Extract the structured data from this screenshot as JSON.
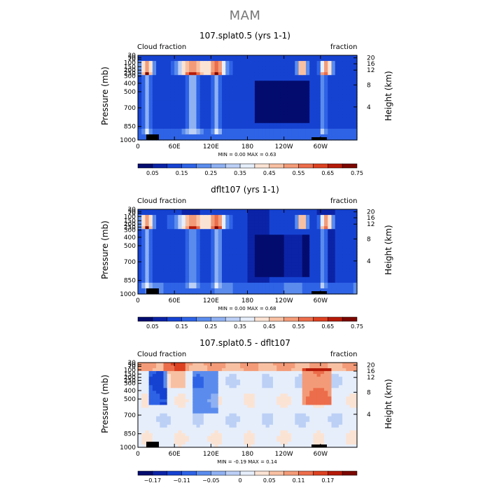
{
  "figure": {
    "title": "MAM"
  },
  "colors": {
    "cloud_scale": [
      "#030c6e",
      "#0b23a6",
      "#1642d1",
      "#2e63e6",
      "#5b8ced",
      "#8fb1f2",
      "#bcd0f6",
      "#e6eefb",
      "#fbe3d4",
      "#f8c0a2",
      "#f39b78",
      "#ec6d4b",
      "#dc4121",
      "#b51a08",
      "#7c0700"
    ],
    "diff_scale": [
      "#030c6e",
      "#0b23a6",
      "#1642d1",
      "#2e63e6",
      "#5b8ced",
      "#8fb1f2",
      "#bcd0f6",
      "#e6eefb",
      "#fbe3d4",
      "#f8c0a2",
      "#f39b78",
      "#ec6d4b",
      "#dc4121",
      "#b51a08",
      "#7c0700"
    ]
  },
  "chart_data": [
    {
      "type": "heatmap",
      "title": "107.splat0.5 (yrs 1-1)",
      "left_label": "Cloud fraction",
      "right_label": "fraction",
      "ylabel": "Pressure (mb)",
      "y2label": "Height (km)",
      "x_ticks": [
        "0",
        "60E",
        "120E",
        "180",
        "120W",
        "60W"
      ],
      "y_ticks": [
        "30",
        "50",
        "70",
        "100",
        "150",
        "200",
        "250",
        "300",
        "400",
        "500",
        "700",
        "850",
        "1000"
      ],
      "y2_ticks": [
        "20",
        "16",
        "12",
        "8",
        "4"
      ],
      "stats": {
        "min_label": "MIN =",
        "min": "0.00",
        "max_label": "MAX =",
        "max": "0.63"
      },
      "colorbar_labels": [
        "0.05",
        "0.15",
        "0.25",
        "0.35",
        "0.45",
        "0.55",
        "0.65",
        "0.75"
      ],
      "scale": "cloud_scale"
    },
    {
      "type": "heatmap",
      "title": "dflt107 (yrs 1-1)",
      "left_label": "Cloud fraction",
      "right_label": "fraction",
      "ylabel": "Pressure (mb)",
      "y2label": "Height (km)",
      "x_ticks": [
        "0",
        "60E",
        "120E",
        "180",
        "120W",
        "60W"
      ],
      "y_ticks": [
        "30",
        "50",
        "70",
        "100",
        "150",
        "200",
        "250",
        "300",
        "400",
        "500",
        "700",
        "850",
        "1000"
      ],
      "y2_ticks": [
        "20",
        "16",
        "12",
        "8",
        "4"
      ],
      "stats": {
        "min_label": "MIN =",
        "min": "0.00",
        "max_label": "MAX =",
        "max": "0.68"
      },
      "colorbar_labels": [
        "0.05",
        "0.15",
        "0.25",
        "0.35",
        "0.45",
        "0.55",
        "0.65",
        "0.75"
      ],
      "scale": "cloud_scale"
    },
    {
      "type": "heatmap",
      "title": "107.splat0.5 - dflt107",
      "left_label": "Cloud fraction",
      "right_label": "fraction",
      "ylabel": "Pressure (mb)",
      "y2label": "Height (km)",
      "x_ticks": [
        "0",
        "60E",
        "120E",
        "180",
        "120W",
        "60W"
      ],
      "y_ticks": [
        "30",
        "50",
        "70",
        "100",
        "150",
        "200",
        "250",
        "300",
        "400",
        "500",
        "700",
        "850",
        "1000"
      ],
      "y2_ticks": [
        "20",
        "16",
        "12",
        "8",
        "4"
      ],
      "stats": {
        "min_label": "MIN =",
        "min": "-0.19",
        "max_label": "MAX =",
        "max": "0.14"
      },
      "colorbar_labels": [
        "−0.17",
        "−0.11",
        "−0.05",
        "0",
        "0.05",
        "0.11",
        "0.17"
      ],
      "scale": "diff_scale"
    }
  ]
}
